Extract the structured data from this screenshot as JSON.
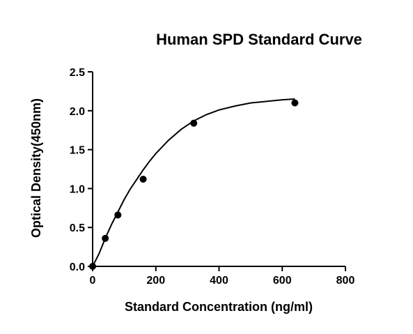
{
  "chart_data": {
    "type": "scatter",
    "title": "Human SPD Standard Curve",
    "xlabel": "Standard Concentration (ng/ml)",
    "ylabel": "Optical Density(450nm)",
    "xlim": [
      0,
      800
    ],
    "ylim": [
      0,
      2.5
    ],
    "x_ticks": [
      0,
      200,
      400,
      600,
      800
    ],
    "x_tick_labels": [
      "0",
      "200",
      "400",
      "600",
      "800"
    ],
    "y_ticks": [
      0,
      0.5,
      1.0,
      1.5,
      2.0,
      2.5
    ],
    "y_tick_labels": [
      "0.0",
      "0.5",
      "1.0",
      "1.5",
      "2.0",
      "2.5"
    ],
    "grid": false,
    "legend": "none",
    "series": [
      {
        "points": [
          {
            "x": 0,
            "y": 0.0
          },
          {
            "x": 40,
            "y": 0.36
          },
          {
            "x": 80,
            "y": 0.66
          },
          {
            "x": 160,
            "y": 1.12
          },
          {
            "x": 320,
            "y": 1.84
          },
          {
            "x": 640,
            "y": 2.1
          }
        ],
        "marker": "circle",
        "color": "#000000"
      }
    ],
    "fit_curve": {
      "type": "four-parameter logistic",
      "x": [
        0,
        20,
        40,
        60,
        80,
        100,
        120,
        140,
        160,
        180,
        200,
        240,
        280,
        320,
        360,
        400,
        450,
        500,
        550,
        600,
        640
      ],
      "y": [
        0.0,
        0.16,
        0.36,
        0.54,
        0.7,
        0.86,
        1.0,
        1.12,
        1.24,
        1.35,
        1.45,
        1.62,
        1.76,
        1.87,
        1.95,
        2.01,
        2.06,
        2.1,
        2.12,
        2.14,
        2.15
      ]
    }
  }
}
